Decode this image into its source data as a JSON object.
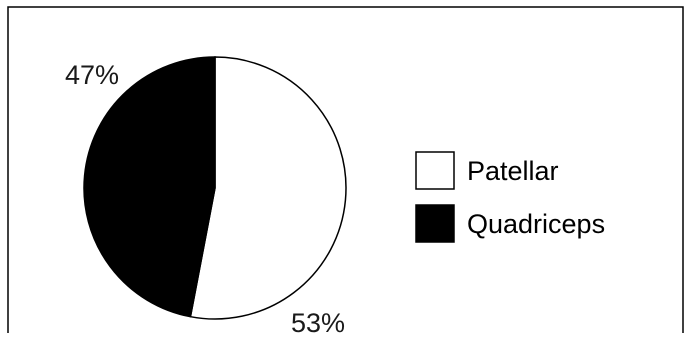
{
  "chart_data": {
    "type": "pie",
    "categories": [
      "Patellar",
      "Quadriceps"
    ],
    "values": [
      53,
      47
    ],
    "data_labels": [
      "53%",
      "47%"
    ],
    "colors": [
      "#ffffff",
      "#000000"
    ],
    "legend_placement": "right",
    "title": ""
  }
}
